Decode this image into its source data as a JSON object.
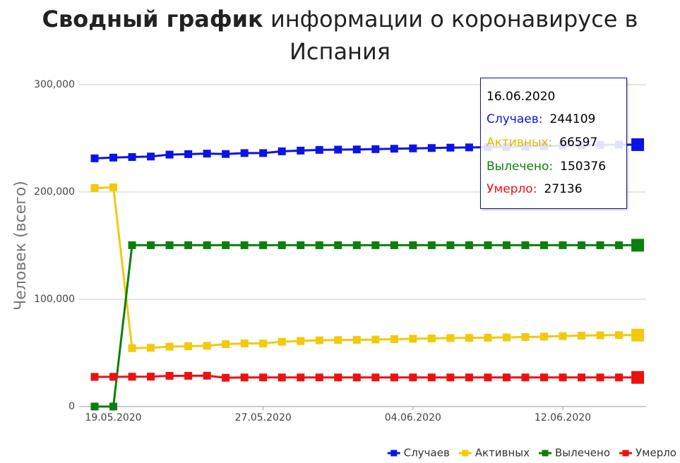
{
  "chart_data": {
    "type": "line",
    "title_bold": "Сводный график",
    "title": "информации о коронавирусе в Испания",
    "y_label": "Человек (всего)",
    "categories": [
      null,
      "19.05.2020",
      null,
      null,
      null,
      null,
      null,
      null,
      null,
      "27.05.2020",
      null,
      null,
      null,
      null,
      null,
      null,
      null,
      "04.06.2020",
      null,
      null,
      null,
      null,
      null,
      null,
      null,
      "12.06.2020",
      null,
      null,
      null,
      null
    ],
    "ylim": [
      0,
      300000
    ],
    "yticks": [
      0,
      {
        "value": 100000,
        "label": "100,000"
      },
      {
        "value": 200000,
        "label": "200,000"
      },
      {
        "value": 300000,
        "label": "300,000"
      }
    ],
    "grid": true,
    "legend": "bottom-right",
    "series": [
      {
        "name": "Случаев",
        "color": "#0b14e6",
        "values": [
          231350,
          232037,
          232555,
          233037,
          234824,
          235290,
          235772,
          235400,
          236259,
          236259,
          237906,
          238564,
          239228,
          239479,
          239638,
          239932,
          240326,
          240660,
          240978,
          241310,
          241550,
          241717,
          241966,
          242280,
          242707,
          243209,
          243605,
          243928,
          244109,
          244109
        ]
      },
      {
        "name": "Активных",
        "color": "#f2c90c",
        "values": [
          203700,
          204328,
          54401,
          54773,
          55820,
          56236,
          56644,
          58190,
          58766,
          58766,
          60412,
          61069,
          61731,
          61978,
          62135,
          62429,
          62823,
          63156,
          63469,
          63800,
          64039,
          64205,
          64454,
          64768,
          65195,
          65697,
          66093,
          66416,
          66597,
          66597
        ]
      },
      {
        "name": "Вылечено",
        "color": "#0c7f0c",
        "values": [
          0,
          0,
          150376,
          150376,
          150376,
          150376,
          150376,
          150376,
          150376,
          150376,
          150376,
          150376,
          150376,
          150376,
          150376,
          150376,
          150376,
          150376,
          150376,
          150376,
          150376,
          150376,
          150376,
          150376,
          150376,
          150376,
          150376,
          150376,
          150376,
          150376
        ]
      },
      {
        "name": "Умерло",
        "color": "#ec1111",
        "values": [
          27650,
          27709,
          27778,
          27888,
          28628,
          28678,
          28752,
          26834,
          27117,
          27117,
          27118,
          27119,
          27121,
          27125,
          27127,
          27127,
          27127,
          27128,
          27133,
          27134,
          27135,
          27136,
          27136,
          27136,
          27136,
          27136,
          27136,
          27136,
          27136,
          27136
        ]
      }
    ],
    "tooltip": {
      "title": "16.06.2020",
      "labels": [
        "Случаев:",
        "Активных:",
        "Вылечено:",
        "Умерло:"
      ]
    }
  }
}
